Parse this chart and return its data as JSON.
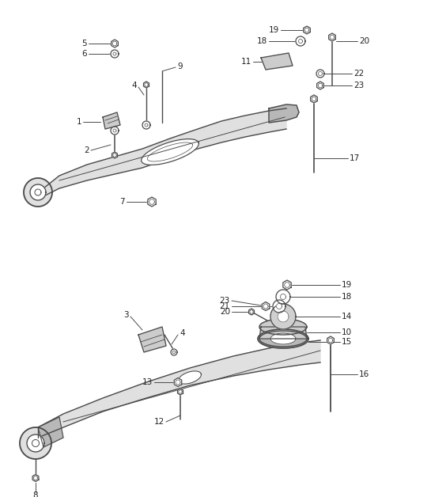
{
  "bg_color": "#ffffff",
  "fig_width": 5.45,
  "fig_height": 6.28,
  "lc": "#4a4a4a",
  "tc": "#222222",
  "fill_arm": "#e0e0e0",
  "fill_dark": "#b8b8b8",
  "fill_mid": "#cccccc"
}
